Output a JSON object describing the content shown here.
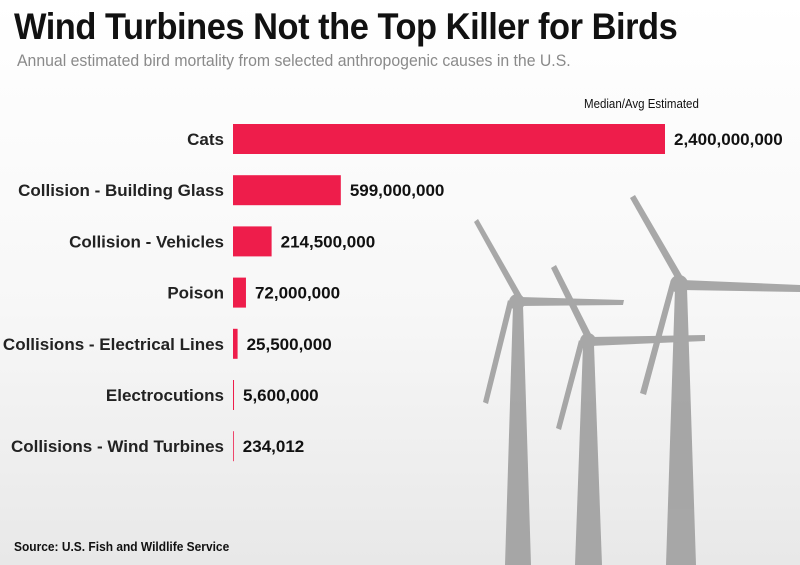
{
  "header": {
    "title": "Wind Turbines Not the Top Killer for Birds",
    "subtitle": "Annual estimated bird mortality from selected anthropogenic causes in the U.S."
  },
  "legend": {
    "label": "Median/Avg Estimated"
  },
  "footer": {
    "source": "Source:  U.S. Fish and Wildlife Service"
  },
  "colors": {
    "bar": "#ee1d4b",
    "turbine": "#9e9e9e",
    "background_top": "#ffffff",
    "background_bottom": "#e9e9e9"
  },
  "chart_data": {
    "type": "bar",
    "orientation": "horizontal",
    "categories": [
      "Cats",
      "Collision - Building Glass",
      "Collision - Vehicles",
      "Poison",
      "Collisions - Electrical Lines",
      "Electrocutions",
      "Collisions - Wind Turbines"
    ],
    "values": [
      2400000000,
      599000000,
      214500000,
      72000000,
      25500000,
      5600000,
      234012
    ],
    "value_labels": [
      "2,400,000,000",
      "599,000,000",
      "214,500,000",
      "72,000,000",
      "25,500,000",
      "5,600,000",
      "234,012"
    ],
    "title": "Wind Turbines Not the Top Killer for Birds",
    "xlabel": "",
    "ylabel": "",
    "xlim": [
      0,
      2400000000
    ],
    "grid": false,
    "legend": "top-right"
  }
}
